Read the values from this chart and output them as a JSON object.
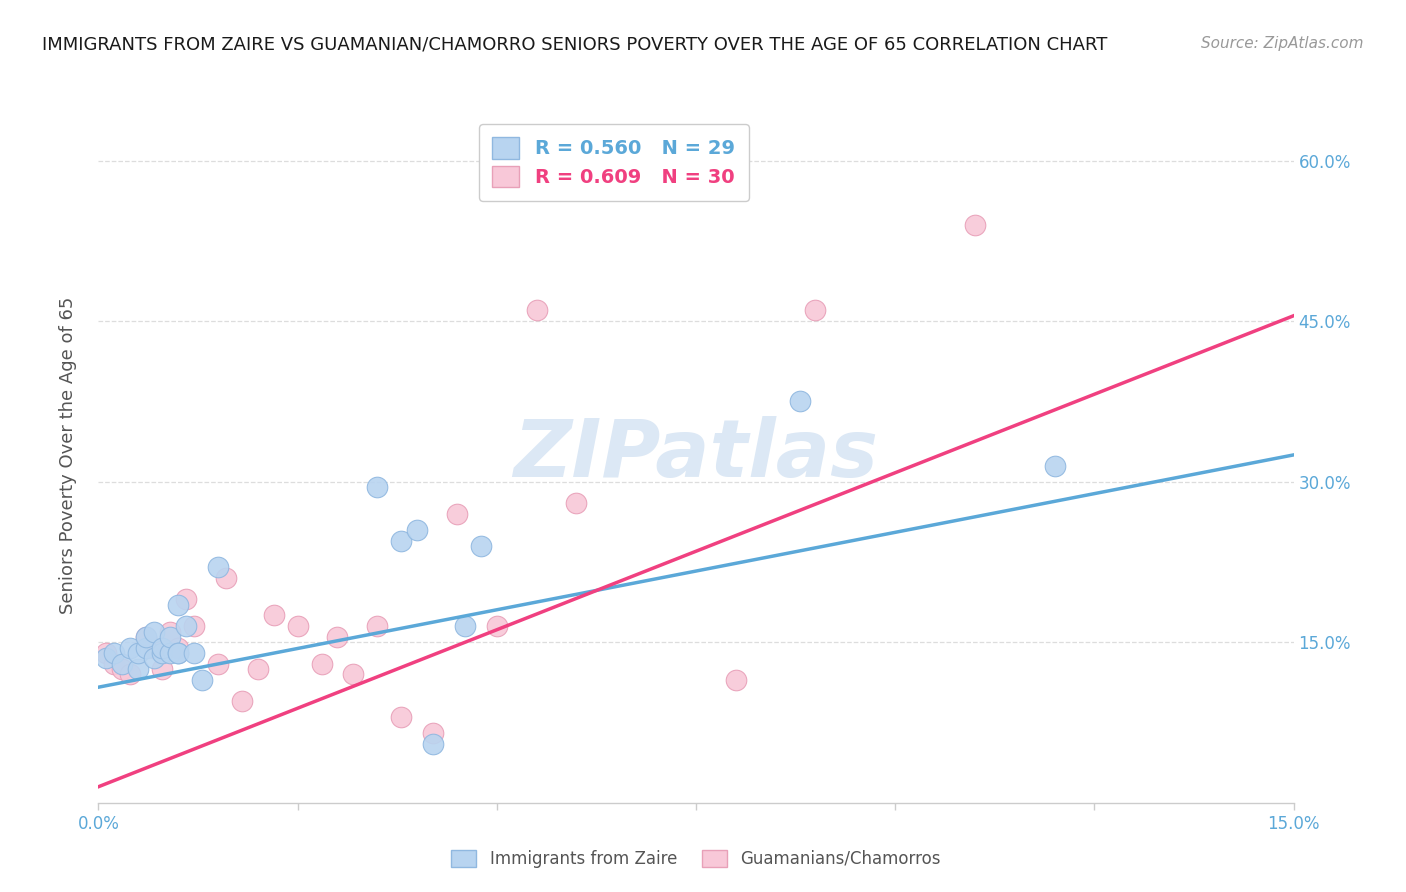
{
  "title": "IMMIGRANTS FROM ZAIRE VS GUAMANIAN/CHAMORRO SENIORS POVERTY OVER THE AGE OF 65 CORRELATION CHART",
  "source": "Source: ZipAtlas.com",
  "ylabel": "Seniors Poverty Over the Age of 65",
  "xmin": 0.0,
  "xmax": 0.15,
  "ymin": 0.0,
  "ymax": 0.65,
  "xticks": [
    0.0,
    0.025,
    0.05,
    0.075,
    0.1,
    0.125,
    0.15
  ],
  "xtick_labels": [
    "0.0%",
    "",
    "",
    "",
    "",
    "",
    "15.0%"
  ],
  "yticks": [
    0.15,
    0.3,
    0.45,
    0.6
  ],
  "ytick_labels": [
    "15.0%",
    "30.0%",
    "45.0%",
    "60.0%"
  ],
  "legend_blue_label": "R = 0.560   N = 29",
  "legend_pink_label": "R = 0.609   N = 30",
  "legend_blue_color": "#b8d4f0",
  "legend_pink_color": "#f8c8d8",
  "scatter_blue_color": "#b8d4f0",
  "scatter_pink_color": "#f8c8d8",
  "scatter_blue_edge": "#90b8e0",
  "scatter_pink_edge": "#e8a0b8",
  "line_blue_color": "#5ba8d8",
  "line_pink_color": "#f04080",
  "watermark": "ZIPatlas",
  "watermark_color": "#dce8f5",
  "blue_scatter_x": [
    0.001,
    0.002,
    0.003,
    0.004,
    0.005,
    0.005,
    0.006,
    0.006,
    0.007,
    0.007,
    0.008,
    0.008,
    0.009,
    0.009,
    0.01,
    0.01,
    0.01,
    0.011,
    0.012,
    0.013,
    0.015,
    0.035,
    0.038,
    0.04,
    0.042,
    0.046,
    0.048,
    0.088,
    0.12
  ],
  "blue_scatter_y": [
    0.135,
    0.14,
    0.13,
    0.145,
    0.125,
    0.14,
    0.145,
    0.155,
    0.135,
    0.16,
    0.14,
    0.145,
    0.14,
    0.155,
    0.14,
    0.14,
    0.185,
    0.165,
    0.14,
    0.115,
    0.22,
    0.295,
    0.245,
    0.255,
    0.055,
    0.165,
    0.24,
    0.375,
    0.315
  ],
  "pink_scatter_x": [
    0.001,
    0.002,
    0.003,
    0.004,
    0.006,
    0.007,
    0.008,
    0.009,
    0.01,
    0.011,
    0.012,
    0.015,
    0.016,
    0.018,
    0.02,
    0.022,
    0.025,
    0.028,
    0.03,
    0.032,
    0.035,
    0.038,
    0.042,
    0.045,
    0.05,
    0.055,
    0.06,
    0.08,
    0.09,
    0.11
  ],
  "pink_scatter_y": [
    0.14,
    0.13,
    0.125,
    0.12,
    0.155,
    0.145,
    0.125,
    0.16,
    0.145,
    0.19,
    0.165,
    0.13,
    0.21,
    0.095,
    0.125,
    0.175,
    0.165,
    0.13,
    0.155,
    0.12,
    0.165,
    0.08,
    0.065,
    0.27,
    0.165,
    0.46,
    0.28,
    0.115,
    0.46,
    0.54
  ],
  "blue_line_x": [
    0.0,
    0.15
  ],
  "blue_line_y": [
    0.108,
    0.325
  ],
  "pink_line_x": [
    0.0,
    0.15
  ],
  "pink_line_y": [
    0.015,
    0.455
  ],
  "bottom_legend_blue_label": "Immigrants from Zaire",
  "bottom_legend_pink_label": "Guamanians/Chamorros",
  "background_color": "#ffffff",
  "grid_color": "#dddddd",
  "title_color": "#1a1a1a",
  "tick_color": "#5ba8d8",
  "ylabel_color": "#555555"
}
